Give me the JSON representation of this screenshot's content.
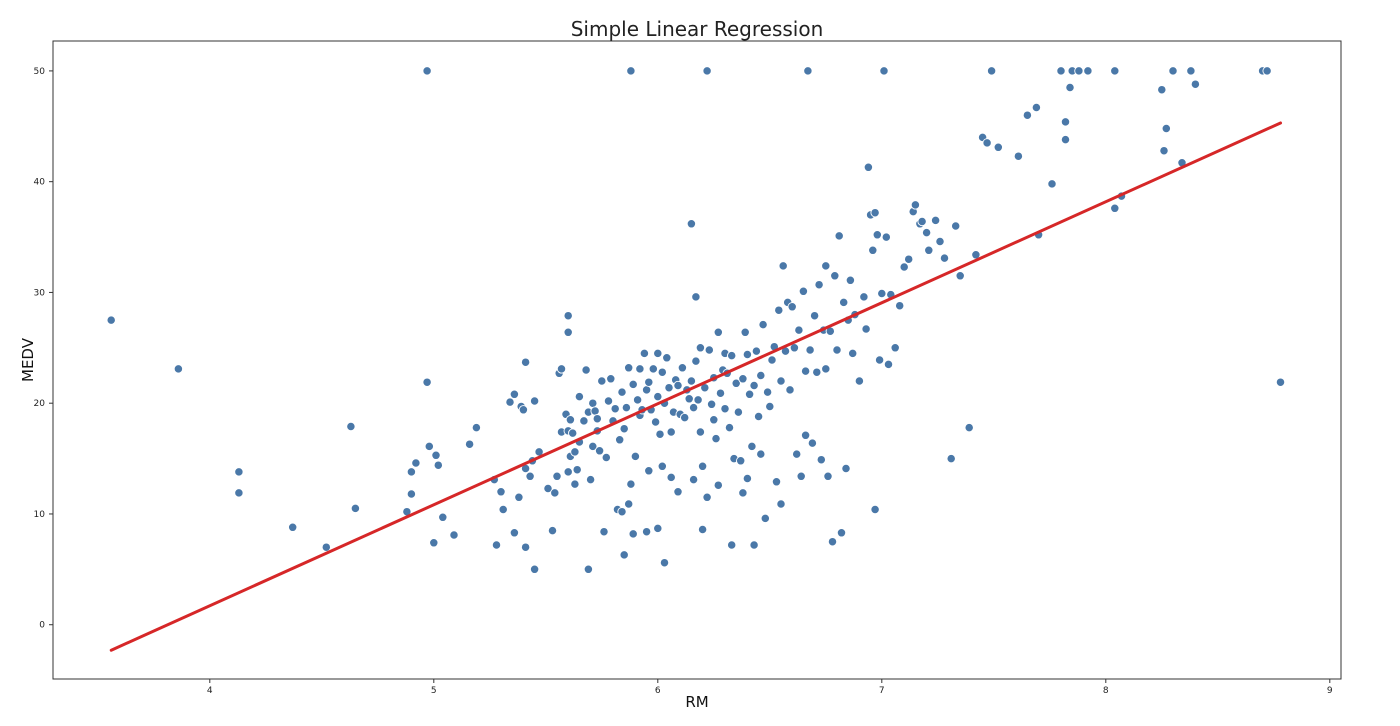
{
  "chart_data": {
    "type": "scatter",
    "title": "Simple Linear Regression",
    "xlabel": "RM",
    "ylabel": "MEDV",
    "xlim": [
      3.3,
      9.05
    ],
    "ylim": [
      -4.9,
      52.7
    ],
    "xticks": [
      4,
      5,
      6,
      7,
      8,
      9
    ],
    "yticks": [
      0,
      10,
      20,
      30,
      40,
      50
    ],
    "grid": false,
    "legend": "none",
    "colors": {
      "points": "#4a78a8",
      "point_edge": "#ffffff",
      "line": "#d62728",
      "axes": "#333333"
    },
    "regression_line": {
      "x": [
        3.56,
        8.78
      ],
      "y": [
        -2.3,
        45.3
      ]
    },
    "points": [
      [
        3.56,
        27.5
      ],
      [
        3.86,
        23.1
      ],
      [
        4.13,
        13.8
      ],
      [
        4.13,
        11.9
      ],
      [
        4.37,
        8.8
      ],
      [
        4.52,
        7.0
      ],
      [
        4.63,
        17.9
      ],
      [
        4.65,
        10.5
      ],
      [
        4.88,
        10.2
      ],
      [
        4.9,
        11.8
      ],
      [
        4.9,
        13.8
      ],
      [
        4.92,
        14.6
      ],
      [
        4.97,
        50.0
      ],
      [
        4.97,
        21.9
      ],
      [
        4.98,
        16.1
      ],
      [
        5.0,
        7.4
      ],
      [
        5.01,
        15.3
      ],
      [
        5.02,
        14.4
      ],
      [
        5.04,
        9.7
      ],
      [
        5.09,
        8.1
      ],
      [
        5.16,
        16.3
      ],
      [
        5.19,
        17.8
      ],
      [
        5.27,
        13.1
      ],
      [
        5.28,
        7.2
      ],
      [
        5.3,
        12.0
      ],
      [
        5.31,
        10.4
      ],
      [
        5.34,
        20.1
      ],
      [
        5.36,
        20.8
      ],
      [
        5.36,
        8.3
      ],
      [
        5.38,
        11.5
      ],
      [
        5.39,
        19.7
      ],
      [
        5.4,
        19.4
      ],
      [
        5.41,
        14.1
      ],
      [
        5.41,
        23.7
      ],
      [
        5.41,
        7.0
      ],
      [
        5.43,
        13.4
      ],
      [
        5.44,
        14.8
      ],
      [
        5.45,
        20.2
      ],
      [
        5.45,
        5.0
      ],
      [
        5.47,
        15.6
      ],
      [
        5.51,
        12.3
      ],
      [
        5.53,
        8.5
      ],
      [
        5.54,
        11.9
      ],
      [
        5.55,
        13.4
      ],
      [
        5.56,
        22.7
      ],
      [
        5.57,
        23.1
      ],
      [
        5.57,
        17.4
      ],
      [
        5.59,
        19.0
      ],
      [
        5.6,
        13.8
      ],
      [
        5.6,
        17.5
      ],
      [
        5.6,
        27.9
      ],
      [
        5.6,
        26.4
      ],
      [
        5.61,
        18.5
      ],
      [
        5.61,
        15.2
      ],
      [
        5.62,
        17.3
      ],
      [
        5.63,
        12.7
      ],
      [
        5.63,
        15.6
      ],
      [
        5.64,
        14.0
      ],
      [
        5.65,
        16.5
      ],
      [
        5.65,
        20.6
      ],
      [
        5.67,
        18.4
      ],
      [
        5.68,
        23.0
      ],
      [
        5.69,
        5.0
      ],
      [
        5.69,
        19.2
      ],
      [
        5.7,
        13.1
      ],
      [
        5.71,
        16.1
      ],
      [
        5.71,
        20.0
      ],
      [
        5.72,
        19.3
      ],
      [
        5.73,
        18.6
      ],
      [
        5.73,
        17.5
      ],
      [
        5.74,
        15.7
      ],
      [
        5.75,
        22.0
      ],
      [
        5.76,
        8.4
      ],
      [
        5.77,
        15.1
      ],
      [
        5.78,
        20.2
      ],
      [
        5.79,
        22.2
      ],
      [
        5.8,
        18.4
      ],
      [
        5.81,
        19.5
      ],
      [
        5.82,
        10.4
      ],
      [
        5.83,
        16.7
      ],
      [
        5.84,
        10.2
      ],
      [
        5.84,
        21.0
      ],
      [
        5.85,
        17.7
      ],
      [
        5.85,
        6.3
      ],
      [
        5.86,
        19.6
      ],
      [
        5.87,
        10.9
      ],
      [
        5.87,
        23.2
      ],
      [
        5.88,
        12.7
      ],
      [
        5.88,
        50.0
      ],
      [
        5.89,
        21.7
      ],
      [
        5.89,
        8.2
      ],
      [
        5.9,
        15.2
      ],
      [
        5.91,
        20.3
      ],
      [
        5.92,
        23.1
      ],
      [
        5.92,
        18.9
      ],
      [
        5.93,
        19.4
      ],
      [
        5.94,
        24.5
      ],
      [
        5.95,
        8.4
      ],
      [
        5.95,
        21.2
      ],
      [
        5.96,
        13.9
      ],
      [
        5.96,
        21.9
      ],
      [
        5.97,
        19.4
      ],
      [
        5.98,
        23.1
      ],
      [
        5.99,
        18.3
      ],
      [
        6.0,
        20.6
      ],
      [
        6.0,
        24.5
      ],
      [
        6.0,
        8.7
      ],
      [
        6.01,
        17.2
      ],
      [
        6.02,
        14.3
      ],
      [
        6.02,
        22.8
      ],
      [
        6.03,
        20.0
      ],
      [
        6.03,
        5.6
      ],
      [
        6.04,
        24.1
      ],
      [
        6.05,
        21.4
      ],
      [
        6.06,
        13.3
      ],
      [
        6.06,
        17.4
      ],
      [
        6.07,
        19.2
      ],
      [
        6.08,
        22.1
      ],
      [
        6.09,
        21.6
      ],
      [
        6.09,
        12.0
      ],
      [
        6.1,
        19.0
      ],
      [
        6.11,
        23.2
      ],
      [
        6.12,
        18.7
      ],
      [
        6.13,
        21.2
      ],
      [
        6.14,
        20.4
      ],
      [
        6.15,
        22.0
      ],
      [
        6.15,
        36.2
      ],
      [
        6.16,
        13.1
      ],
      [
        6.16,
        19.6
      ],
      [
        6.17,
        23.8
      ],
      [
        6.17,
        29.6
      ],
      [
        6.18,
        20.3
      ],
      [
        6.19,
        17.4
      ],
      [
        6.19,
        25.0
      ],
      [
        6.2,
        8.6
      ],
      [
        6.2,
        14.3
      ],
      [
        6.21,
        21.4
      ],
      [
        6.22,
        50.0
      ],
      [
        6.22,
        11.5
      ],
      [
        6.23,
        24.8
      ],
      [
        6.24,
        19.9
      ],
      [
        6.25,
        18.5
      ],
      [
        6.25,
        22.3
      ],
      [
        6.26,
        16.8
      ],
      [
        6.27,
        12.6
      ],
      [
        6.27,
        26.4
      ],
      [
        6.28,
        20.9
      ],
      [
        6.29,
        23.0
      ],
      [
        6.3,
        19.5
      ],
      [
        6.3,
        24.5
      ],
      [
        6.31,
        22.7
      ],
      [
        6.32,
        17.8
      ],
      [
        6.33,
        24.3
      ],
      [
        6.33,
        7.2
      ],
      [
        6.34,
        15.0
      ],
      [
        6.35,
        21.8
      ],
      [
        6.36,
        19.2
      ],
      [
        6.37,
        14.8
      ],
      [
        6.38,
        22.2
      ],
      [
        6.38,
        11.9
      ],
      [
        6.39,
        26.4
      ],
      [
        6.4,
        13.2
      ],
      [
        6.4,
        24.4
      ],
      [
        6.41,
        20.8
      ],
      [
        6.42,
        16.1
      ],
      [
        6.43,
        21.6
      ],
      [
        6.43,
        7.2
      ],
      [
        6.44,
        24.7
      ],
      [
        6.45,
        18.8
      ],
      [
        6.46,
        15.4
      ],
      [
        6.46,
        22.5
      ],
      [
        6.47,
        27.1
      ],
      [
        6.48,
        9.6
      ],
      [
        6.49,
        21.0
      ],
      [
        6.5,
        19.7
      ],
      [
        6.51,
        23.9
      ],
      [
        6.52,
        25.1
      ],
      [
        6.53,
        12.9
      ],
      [
        6.54,
        28.4
      ],
      [
        6.55,
        22.0
      ],
      [
        6.55,
        10.9
      ],
      [
        6.56,
        32.4
      ],
      [
        6.57,
        24.7
      ],
      [
        6.58,
        29.1
      ],
      [
        6.59,
        21.2
      ],
      [
        6.6,
        28.7
      ],
      [
        6.61,
        25.0
      ],
      [
        6.62,
        15.4
      ],
      [
        6.63,
        26.6
      ],
      [
        6.64,
        13.4
      ],
      [
        6.65,
        30.1
      ],
      [
        6.66,
        22.9
      ],
      [
        6.66,
        17.1
      ],
      [
        6.67,
        50.0
      ],
      [
        6.68,
        24.8
      ],
      [
        6.69,
        16.4
      ],
      [
        6.7,
        27.9
      ],
      [
        6.71,
        22.8
      ],
      [
        6.72,
        30.7
      ],
      [
        6.73,
        14.9
      ],
      [
        6.74,
        26.6
      ],
      [
        6.75,
        32.4
      ],
      [
        6.75,
        23.1
      ],
      [
        6.76,
        13.4
      ],
      [
        6.77,
        26.5
      ],
      [
        6.78,
        7.5
      ],
      [
        6.79,
        31.5
      ],
      [
        6.8,
        24.8
      ],
      [
        6.81,
        35.1
      ],
      [
        6.82,
        8.3
      ],
      [
        6.83,
        29.1
      ],
      [
        6.84,
        14.1
      ],
      [
        6.85,
        27.5
      ],
      [
        6.86,
        31.1
      ],
      [
        6.87,
        24.5
      ],
      [
        6.88,
        28.0
      ],
      [
        6.9,
        22.0
      ],
      [
        6.92,
        29.6
      ],
      [
        6.93,
        26.7
      ],
      [
        6.94,
        41.3
      ],
      [
        6.95,
        37.0
      ],
      [
        6.96,
        33.8
      ],
      [
        6.97,
        10.4
      ],
      [
        6.97,
        37.2
      ],
      [
        6.98,
        35.2
      ],
      [
        6.99,
        23.9
      ],
      [
        7.0,
        29.9
      ],
      [
        7.01,
        50.0
      ],
      [
        7.02,
        35.0
      ],
      [
        7.03,
        23.5
      ],
      [
        7.04,
        29.8
      ],
      [
        7.06,
        25.0
      ],
      [
        7.08,
        28.8
      ],
      [
        7.1,
        32.3
      ],
      [
        7.12,
        33.0
      ],
      [
        7.14,
        37.3
      ],
      [
        7.15,
        37.9
      ],
      [
        7.17,
        36.2
      ],
      [
        7.18,
        36.4
      ],
      [
        7.2,
        35.4
      ],
      [
        7.21,
        33.8
      ],
      [
        7.24,
        36.5
      ],
      [
        7.26,
        34.6
      ],
      [
        7.28,
        33.1
      ],
      [
        7.31,
        15.0
      ],
      [
        7.33,
        36.0
      ],
      [
        7.35,
        31.5
      ],
      [
        7.39,
        17.8
      ],
      [
        7.42,
        33.4
      ],
      [
        7.45,
        44.0
      ],
      [
        7.47,
        43.5
      ],
      [
        7.49,
        50.0
      ],
      [
        7.52,
        43.1
      ],
      [
        7.61,
        42.3
      ],
      [
        7.65,
        46.0
      ],
      [
        7.69,
        46.7
      ],
      [
        7.7,
        35.2
      ],
      [
        7.76,
        39.8
      ],
      [
        7.8,
        50.0
      ],
      [
        7.82,
        45.4
      ],
      [
        7.82,
        43.8
      ],
      [
        7.84,
        48.5
      ],
      [
        7.85,
        50.0
      ],
      [
        7.88,
        50.0
      ],
      [
        7.92,
        50.0
      ],
      [
        8.04,
        50.0
      ],
      [
        8.04,
        37.6
      ],
      [
        8.07,
        38.7
      ],
      [
        8.25,
        48.3
      ],
      [
        8.26,
        42.8
      ],
      [
        8.27,
        44.8
      ],
      [
        8.3,
        50.0
      ],
      [
        8.34,
        41.7
      ],
      [
        8.38,
        50.0
      ],
      [
        8.4,
        48.8
      ],
      [
        8.7,
        50.0
      ],
      [
        8.72,
        50.0
      ],
      [
        8.78,
        21.9
      ]
    ]
  }
}
